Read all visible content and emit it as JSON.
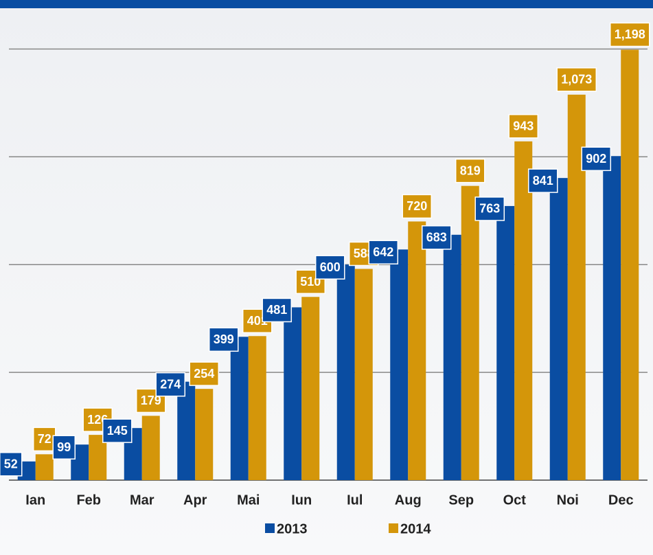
{
  "chart_data": {
    "type": "bar",
    "categories": [
      "Ian",
      "Feb",
      "Mar",
      "Apr",
      "Mai",
      "Iun",
      "Iul",
      "Aug",
      "Sep",
      "Oct",
      "Noi",
      "Dec"
    ],
    "series": [
      {
        "name": "2013",
        "color": "#0a4da2",
        "values": [
          52,
          99,
          145,
          274,
          399,
          481,
          600,
          642,
          683,
          763,
          841,
          902
        ]
      },
      {
        "name": "2014",
        "color": "#d4960a",
        "values": [
          72,
          126,
          179,
          254,
          401,
          510,
          588,
          720,
          819,
          943,
          1073,
          1198
        ],
        "value_labels": [
          "72",
          "126",
          "179",
          "254",
          "401",
          "510",
          "588",
          "720",
          "819",
          "943",
          "1,073",
          "1,198"
        ]
      }
    ],
    "ylim": [
      0,
      1260
    ],
    "yticks": [
      0,
      300,
      600,
      900,
      1200
    ],
    "grid": true,
    "legend": "bottom"
  }
}
